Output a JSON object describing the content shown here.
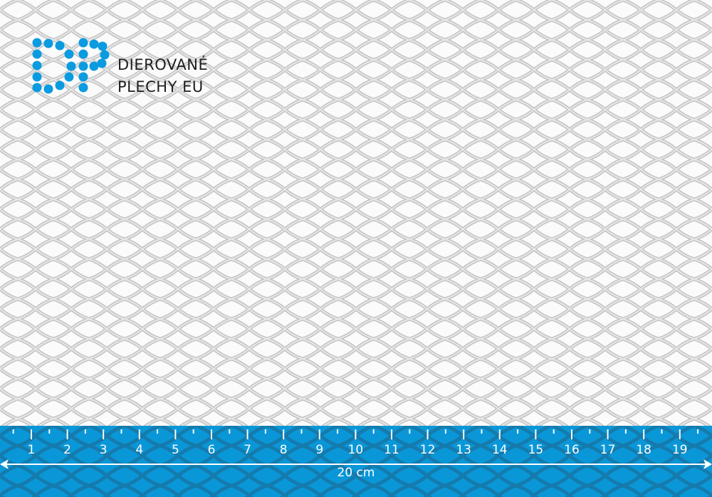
{
  "logo": {
    "line1": "DIEROVANÉ",
    "line2": "PLECHY EU",
    "color": "#0a9be0"
  },
  "ruler": {
    "labels": [
      "1",
      "2",
      "3",
      "4",
      "5",
      "6",
      "7",
      "8",
      "9",
      "10",
      "11",
      "12",
      "13",
      "14",
      "15",
      "16",
      "17",
      "18",
      "19"
    ],
    "length_label": "20 cm",
    "color": "#0a97d8"
  }
}
